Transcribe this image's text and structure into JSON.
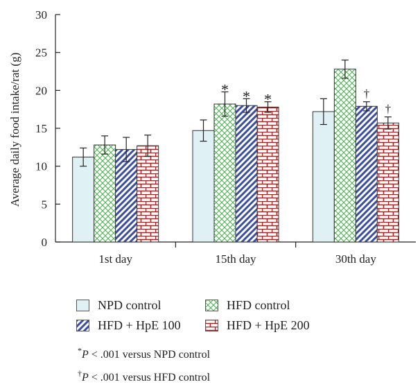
{
  "chart_data": {
    "type": "bar",
    "categories": [
      "1st day",
      "15th day",
      "30th day"
    ],
    "series": [
      {
        "name": "NPD control",
        "values": [
          11.2,
          14.7,
          17.2
        ],
        "errors": [
          1.2,
          1.4,
          1.7
        ],
        "marks": [
          "",
          "",
          ""
        ],
        "color": "#dff1f4",
        "pattern": "plain"
      },
      {
        "name": "HFD control",
        "values": [
          12.8,
          18.2,
          22.8
        ],
        "errors": [
          1.2,
          1.6,
          1.2
        ],
        "marks": [
          "",
          "*",
          ""
        ],
        "color": "#4caf50",
        "pattern": "diamond"
      },
      {
        "name": "HFD + HpE 100",
        "values": [
          12.2,
          18.0,
          17.9
        ],
        "errors": [
          1.6,
          0.9,
          0.6
        ],
        "marks": [
          "",
          "*",
          "†"
        ],
        "color": "#3b4ea0",
        "pattern": "diagonal"
      },
      {
        "name": "HFD + HpE 200",
        "values": [
          12.7,
          17.8,
          15.7
        ],
        "errors": [
          1.4,
          0.7,
          0.8
        ],
        "marks": [
          "",
          "*",
          "†"
        ],
        "color": "#b71c1c",
        "pattern": "brick"
      }
    ],
    "ylabel": "Average daily food intake/rat (g)",
    "xlabel": "",
    "ylim": [
      0,
      30
    ],
    "yticks": [
      0,
      5,
      10,
      15,
      20,
      25,
      30
    ],
    "grid": false,
    "legend_placement": "bottom"
  },
  "notes": [
    {
      "symbol": "*",
      "p": "P",
      "text": " < .001 versus NPD control"
    },
    {
      "symbol": "†",
      "p": "P",
      "text": " < .001 versus HFD control"
    }
  ]
}
